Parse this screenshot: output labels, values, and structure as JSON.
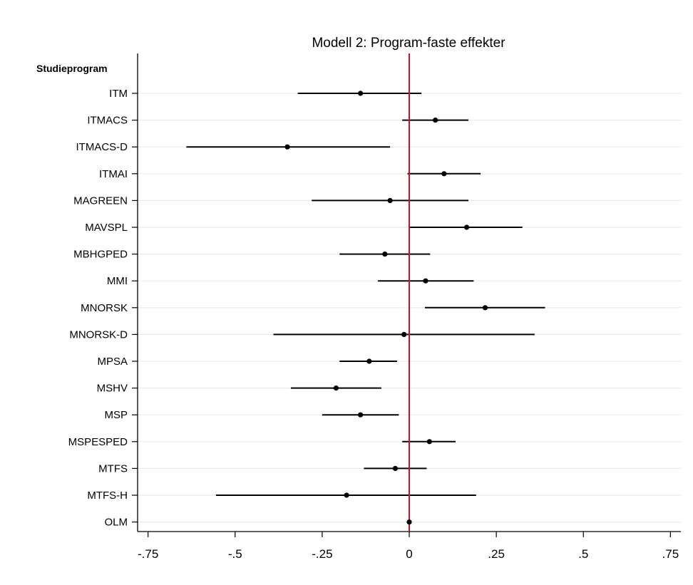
{
  "chart_data": {
    "type": "forest",
    "title": "Modell 2: Program-faste effekter",
    "y_header": "Studieprogram",
    "xlim": [
      -0.78,
      0.78
    ],
    "x_ticks": [
      {
        "value": -0.75,
        "label": "-.75"
      },
      {
        "value": -0.5,
        "label": "-.5"
      },
      {
        "value": -0.25,
        "label": "-.25"
      },
      {
        "value": 0,
        "label": "0"
      },
      {
        "value": 0.25,
        "label": ".25"
      },
      {
        "value": 0.5,
        "label": ".5"
      },
      {
        "value": 0.75,
        "label": ".75"
      }
    ],
    "reference_line": {
      "x": 0,
      "color": "#c8102e"
    },
    "grid": true,
    "colors": {
      "estimate": "#000000",
      "gridline": "#e4ecf2",
      "reference": "#c8102e"
    },
    "rows": [
      {
        "label": "ITM",
        "estimate": -0.14,
        "lower": -0.32,
        "upper": 0.035
      },
      {
        "label": "ITMACS",
        "estimate": 0.075,
        "lower": -0.02,
        "upper": 0.17
      },
      {
        "label": "ITMACS-D",
        "estimate": -0.35,
        "lower": -0.64,
        "upper": -0.055
      },
      {
        "label": "ITMAI",
        "estimate": 0.1,
        "lower": -0.005,
        "upper": 0.205
      },
      {
        "label": "MAGREEN",
        "estimate": -0.055,
        "lower": -0.28,
        "upper": 0.17
      },
      {
        "label": "MAVSPL",
        "estimate": 0.165,
        "lower": 0.0,
        "upper": 0.325
      },
      {
        "label": "MBHGPED",
        "estimate": -0.07,
        "lower": -0.2,
        "upper": 0.06
      },
      {
        "label": "MMI",
        "estimate": 0.047,
        "lower": -0.09,
        "upper": 0.185
      },
      {
        "label": "MNORSK",
        "estimate": 0.218,
        "lower": 0.045,
        "upper": 0.39
      },
      {
        "label": "MNORSK-D",
        "estimate": -0.015,
        "lower": -0.39,
        "upper": 0.36
      },
      {
        "label": "MPSA",
        "estimate": -0.115,
        "lower": -0.2,
        "upper": -0.035
      },
      {
        "label": "MSHV",
        "estimate": -0.21,
        "lower": -0.34,
        "upper": -0.08
      },
      {
        "label": "MSP",
        "estimate": -0.14,
        "lower": -0.25,
        "upper": -0.03
      },
      {
        "label": "MSPESPED",
        "estimate": 0.058,
        "lower": -0.02,
        "upper": 0.133
      },
      {
        "label": "MTFS",
        "estimate": -0.04,
        "lower": -0.13,
        "upper": 0.05
      },
      {
        "label": "MTFS-H",
        "estimate": -0.18,
        "lower": -0.555,
        "upper": 0.192
      },
      {
        "label": "OLM",
        "estimate": 0,
        "lower": 0,
        "upper": 0
      }
    ]
  }
}
